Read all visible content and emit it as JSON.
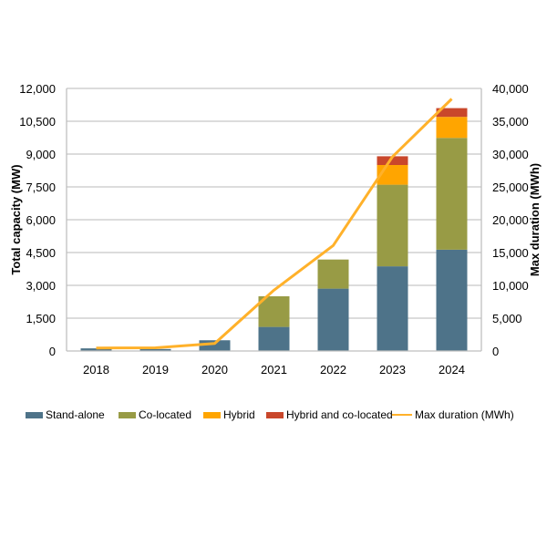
{
  "chart_data": {
    "type": "bar",
    "stacked": true,
    "title": "",
    "xlabel": "",
    "ylabel": "Total capacity (MW)",
    "y2label": "Max duration (MWh)",
    "categories": [
      "2018",
      "2019",
      "2020",
      "2021",
      "2022",
      "2023",
      "2024"
    ],
    "ylim": [
      0,
      12000
    ],
    "yticks": [
      0,
      1500,
      3000,
      4500,
      6000,
      7500,
      9000,
      10500,
      12000
    ],
    "ytick_labels": [
      "0",
      "1,500",
      "3,000",
      "4,500",
      "6,000",
      "7,500",
      "9,000",
      "10,500",
      "12,000"
    ],
    "y2lim": [
      0,
      40000
    ],
    "y2ticks": [
      0,
      5000,
      10000,
      15000,
      20000,
      25000,
      30000,
      35000,
      40000
    ],
    "y2tick_labels": [
      "0",
      "5,000",
      "10,000",
      "15,000",
      "20,000",
      "25,000",
      "30,000",
      "35,000",
      "40,000"
    ],
    "grid": true,
    "legend_position": "bottom",
    "series": [
      {
        "name": "Stand-alone",
        "type": "bar",
        "axis": "left",
        "color": "#4E7389",
        "values": [
          120,
          90,
          490,
          1100,
          2850,
          3870,
          4630
        ]
      },
      {
        "name": "Co-located",
        "type": "bar",
        "axis": "left",
        "color": "#989B45",
        "values": [
          0,
          0,
          0,
          1400,
          1330,
          3730,
          5110
        ]
      },
      {
        "name": "Hybrid",
        "type": "bar",
        "axis": "left",
        "color": "#FFA500",
        "values": [
          0,
          0,
          0,
          0,
          0,
          900,
          960
        ]
      },
      {
        "name": "Hybrid and co-located",
        "type": "bar",
        "axis": "left",
        "color": "#C9472B",
        "values": [
          0,
          0,
          0,
          0,
          0,
          400,
          400
        ]
      },
      {
        "name": "Max duration (MWh)",
        "type": "line",
        "axis": "right",
        "color": "#FFB12A",
        "values": [
          460,
          480,
          1150,
          9260,
          16070,
          29600,
          38400
        ]
      }
    ]
  }
}
